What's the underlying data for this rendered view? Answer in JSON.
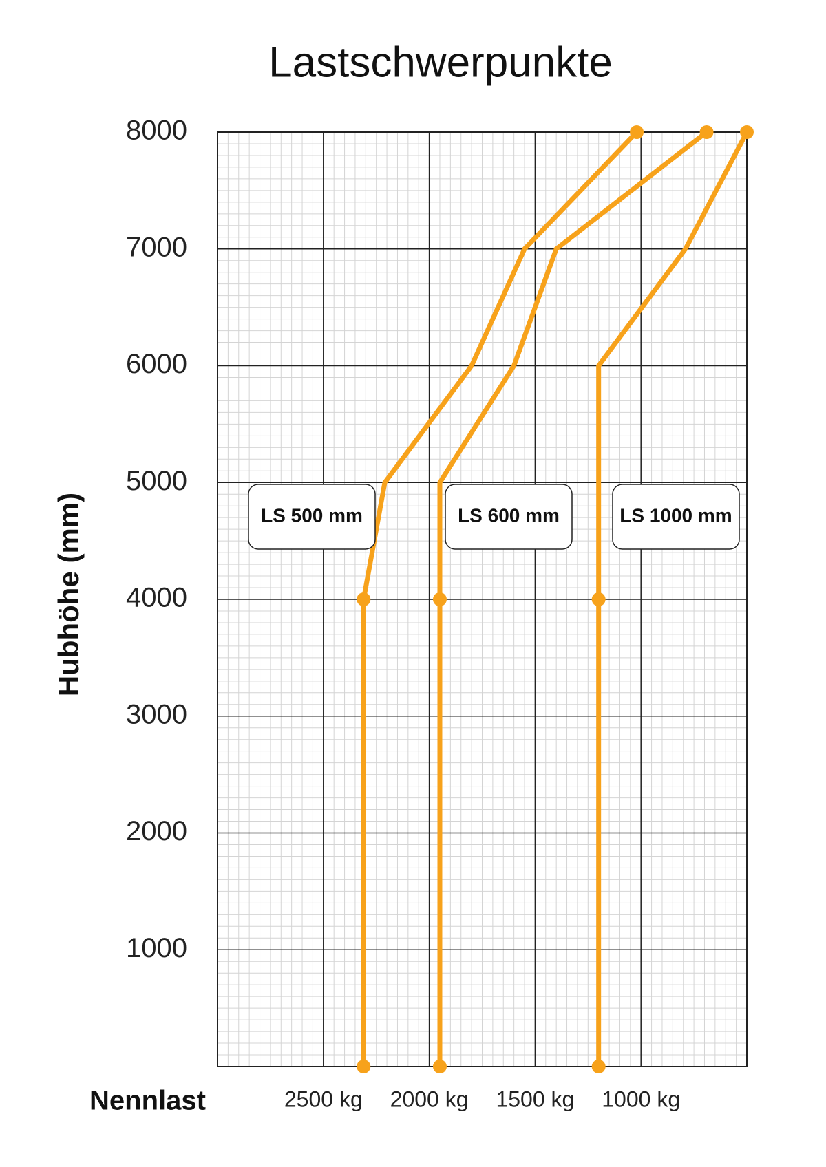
{
  "chart_data": {
    "type": "line",
    "title": "Lastschwerpunkte",
    "x_label": "Nennlast",
    "y_label": "Hubhöhe (mm)",
    "xlim": [
      3000,
      500
    ],
    "xticks": [
      {
        "value": 2500,
        "label": "2500 kg"
      },
      {
        "value": 2000,
        "label": "2000 kg"
      },
      {
        "value": 1500,
        "label": "1500 kg"
      },
      {
        "value": 1000,
        "label": "1000 kg"
      }
    ],
    "ylim": [
      0,
      8000
    ],
    "yticks": [
      1000,
      2000,
      3000,
      4000,
      5000,
      6000,
      7000,
      8000
    ],
    "grid": true,
    "series": [
      {
        "name": "LS 500 mm",
        "color": "#f7a21b",
        "x": [
          2310,
          2310,
          2210,
          1800,
          1550,
          1020
        ],
        "values": [
          0,
          4000,
          5000,
          6000,
          7000,
          8000
        ]
      },
      {
        "name": "LS 600 mm",
        "color": "#f7a21b",
        "x": [
          1950,
          1950,
          1950,
          1600,
          1400,
          690
        ],
        "values": [
          0,
          4000,
          5000,
          6000,
          7000,
          8000
        ]
      },
      {
        "name": "LS 1000 mm",
        "color": "#f7a21b",
        "x": [
          1200,
          1200,
          1200,
          790,
          500
        ],
        "values": [
          0,
          4000,
          6000,
          7000,
          8000
        ]
      }
    ]
  }
}
